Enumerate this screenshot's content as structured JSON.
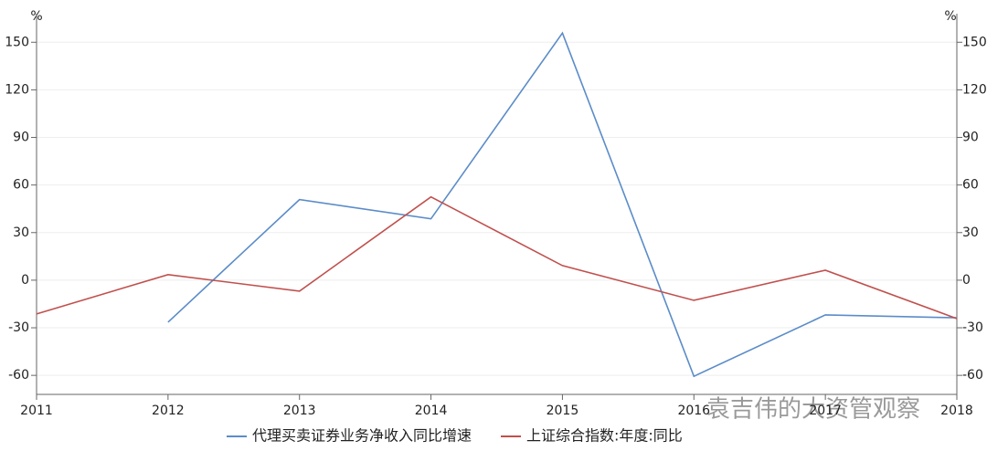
{
  "chart_data": {
    "type": "line",
    "x": [
      2011,
      2012,
      2013,
      2014,
      2015,
      2016,
      2017,
      2018
    ],
    "xlim": [
      2011,
      2018
    ],
    "xticks": [
      2011,
      2012,
      2013,
      2014,
      2015,
      2016,
      2017,
      2018
    ],
    "ylim": [
      -72,
      168
    ],
    "yticks": [
      -60,
      -30,
      0,
      30,
      60,
      90,
      120,
      150
    ],
    "y2lim": [
      -72,
      168
    ],
    "y2ticks": [
      -60,
      -30,
      0,
      30,
      60,
      90,
      120,
      150
    ],
    "y_label": "%",
    "y2_label": "%",
    "grid": true,
    "legend": "bottom",
    "annotation": "袁吉伟的大资管观察",
    "series": [
      {
        "name": "代理买卖证券业务净收入同比增速",
        "color": "#5b8cc8",
        "values": [
          null,
          -26.5,
          50.8,
          38.7,
          155.8,
          -60.6,
          -21.9,
          -23.7
        ]
      },
      {
        "name": "上证综合指数:年度:同比",
        "color": "#c0504d",
        "axis": "y2",
        "values": [
          -21.3,
          3.5,
          -6.9,
          52.5,
          9.2,
          -12.7,
          6.3,
          -24.2
        ]
      }
    ]
  }
}
